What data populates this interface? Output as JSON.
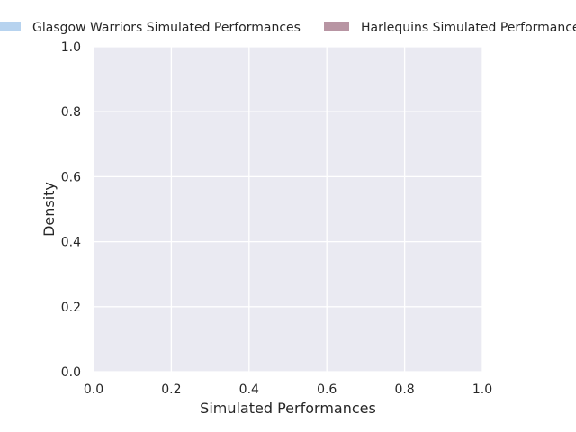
{
  "chart_data": {
    "type": "area",
    "title": "",
    "xlabel": "Simulated Performances",
    "ylabel": "Density",
    "xlim": [
      0.0,
      1.0
    ],
    "ylim": [
      0.0,
      1.0
    ],
    "x_ticks": [
      "0.0",
      "0.2",
      "0.4",
      "0.6",
      "0.8",
      "1.0"
    ],
    "y_ticks": [
      "0.0",
      "0.2",
      "0.4",
      "0.6",
      "0.8",
      "1.0"
    ],
    "grid": true,
    "legend_position": "top",
    "series": [
      {
        "name": "Glasgow Warriors Simulated Performances",
        "color": "#b7d3ef",
        "x": [],
        "y": []
      },
      {
        "name": "Harlequins Simulated Performances",
        "color": "#b895a3",
        "x": [],
        "y": []
      }
    ],
    "colors": {
      "plot_background": "#eaeaf2",
      "grid": "#ffffff",
      "text": "#262626"
    }
  }
}
